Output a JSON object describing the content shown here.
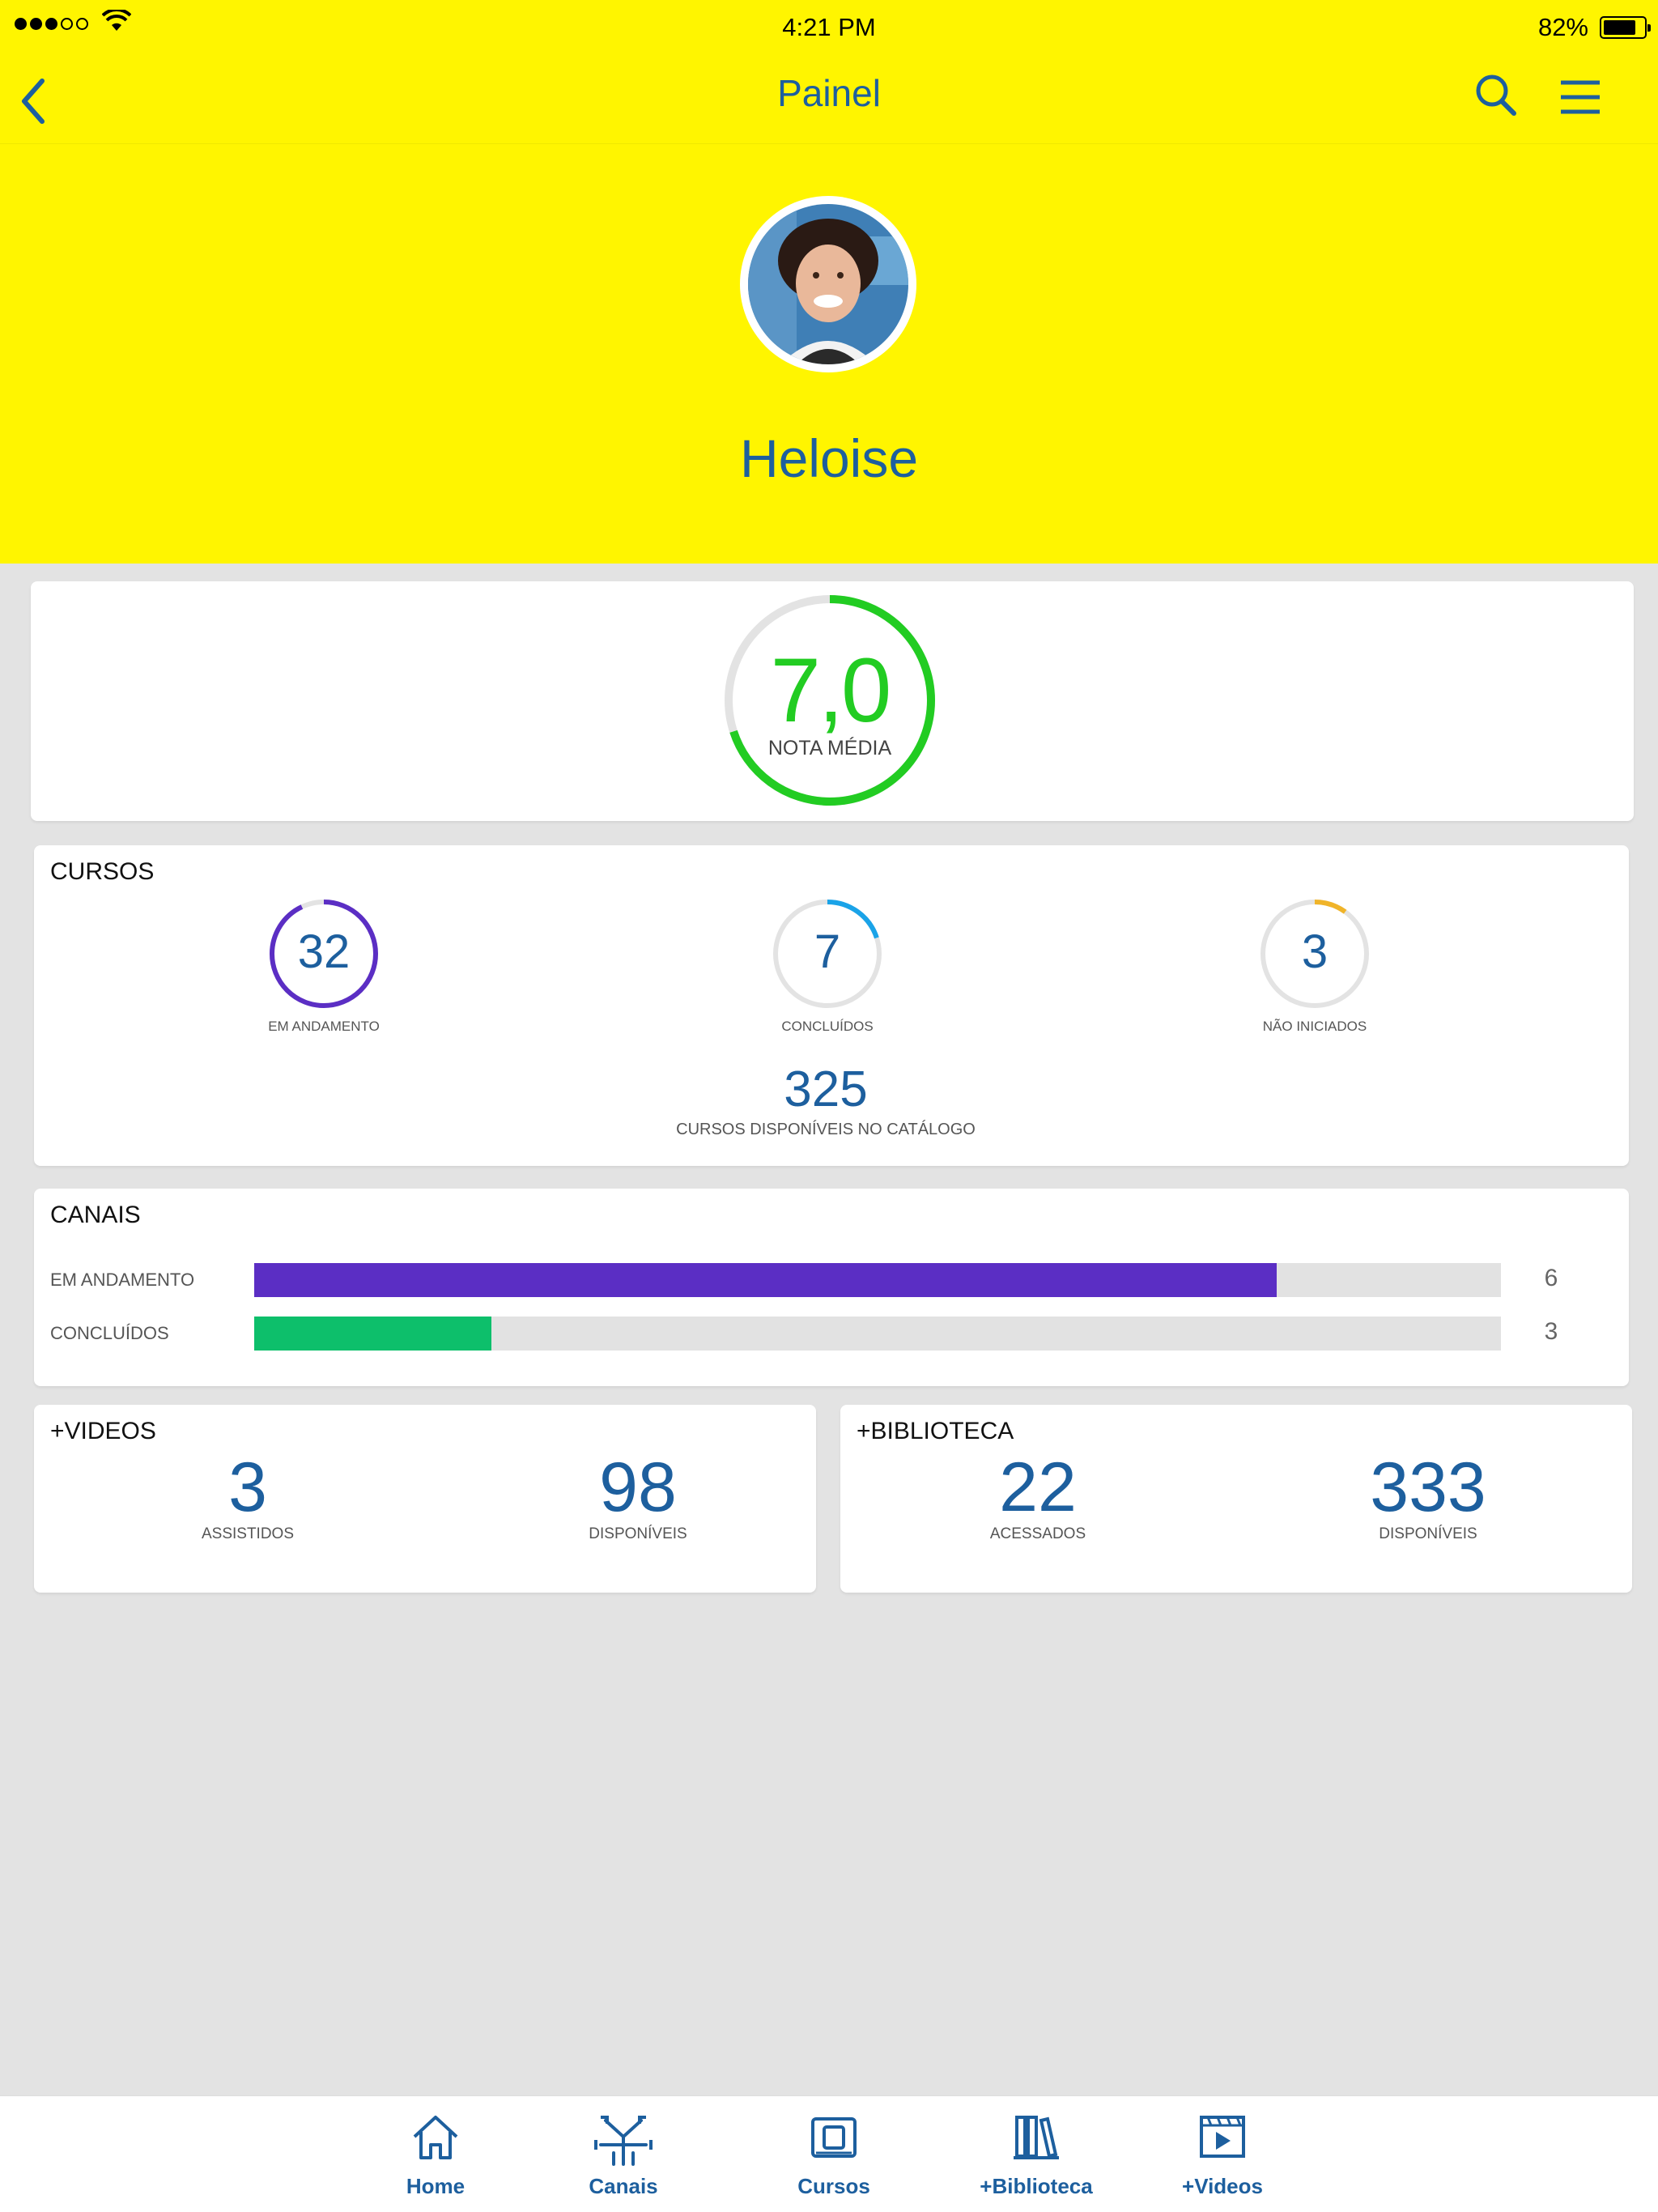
{
  "status_bar": {
    "time": "4:21 PM",
    "battery": "82%",
    "battery_level": 0.82
  },
  "nav": {
    "title": "Painel"
  },
  "profile": {
    "name": "Heloise"
  },
  "grade": {
    "value": "7,0",
    "label": "NOTA MÉDIA",
    "progress": 0.7,
    "color": "#22cc22"
  },
  "cursos": {
    "title": "CURSOS",
    "stats": [
      {
        "value": "32",
        "label": "EM ANDAMENTO",
        "progress": 0.93,
        "color": "#5b2ec4"
      },
      {
        "value": "7",
        "label": "CONCLUÍDOS",
        "progress": 0.2,
        "color": "#1aa3e8"
      },
      {
        "value": "3",
        "label": "NÃO INICIADOS",
        "progress": 0.1,
        "color": "#f0b429"
      }
    ],
    "catalog_value": "325",
    "catalog_label": "CURSOS DISPONÍVEIS NO CATÁLOGO"
  },
  "canais": {
    "title": "CANAIS",
    "rows": [
      {
        "label": "EM ANDAMENTO",
        "value": "6",
        "fraction": 0.82,
        "color": "#5b2ec4"
      },
      {
        "label": "CONCLUÍDOS",
        "value": "3",
        "fraction": 0.19,
        "color": "#0dbf6b"
      }
    ]
  },
  "videos": {
    "title": "+VIDEOS",
    "watched_value": "3",
    "watched_label": "ASSISTIDOS",
    "available_value": "98",
    "available_label": "DISPONÍVEIS"
  },
  "biblioteca": {
    "title": "+BIBLIOTECA",
    "accessed_value": "22",
    "accessed_label": "ACESSADOS",
    "available_value": "333",
    "available_label": "DISPONÍVEIS"
  },
  "tabs": [
    {
      "label": "Home",
      "icon": "home-icon"
    },
    {
      "label": "Canais",
      "icon": "channels-icon"
    },
    {
      "label": "Cursos",
      "icon": "courses-icon"
    },
    {
      "label": "+Biblioteca",
      "icon": "library-icon"
    },
    {
      "label": "+Videos",
      "icon": "video-icon"
    }
  ],
  "colors": {
    "header": "#fff500",
    "primary": "#1d5f9e",
    "background": "#e3e3e3"
  }
}
